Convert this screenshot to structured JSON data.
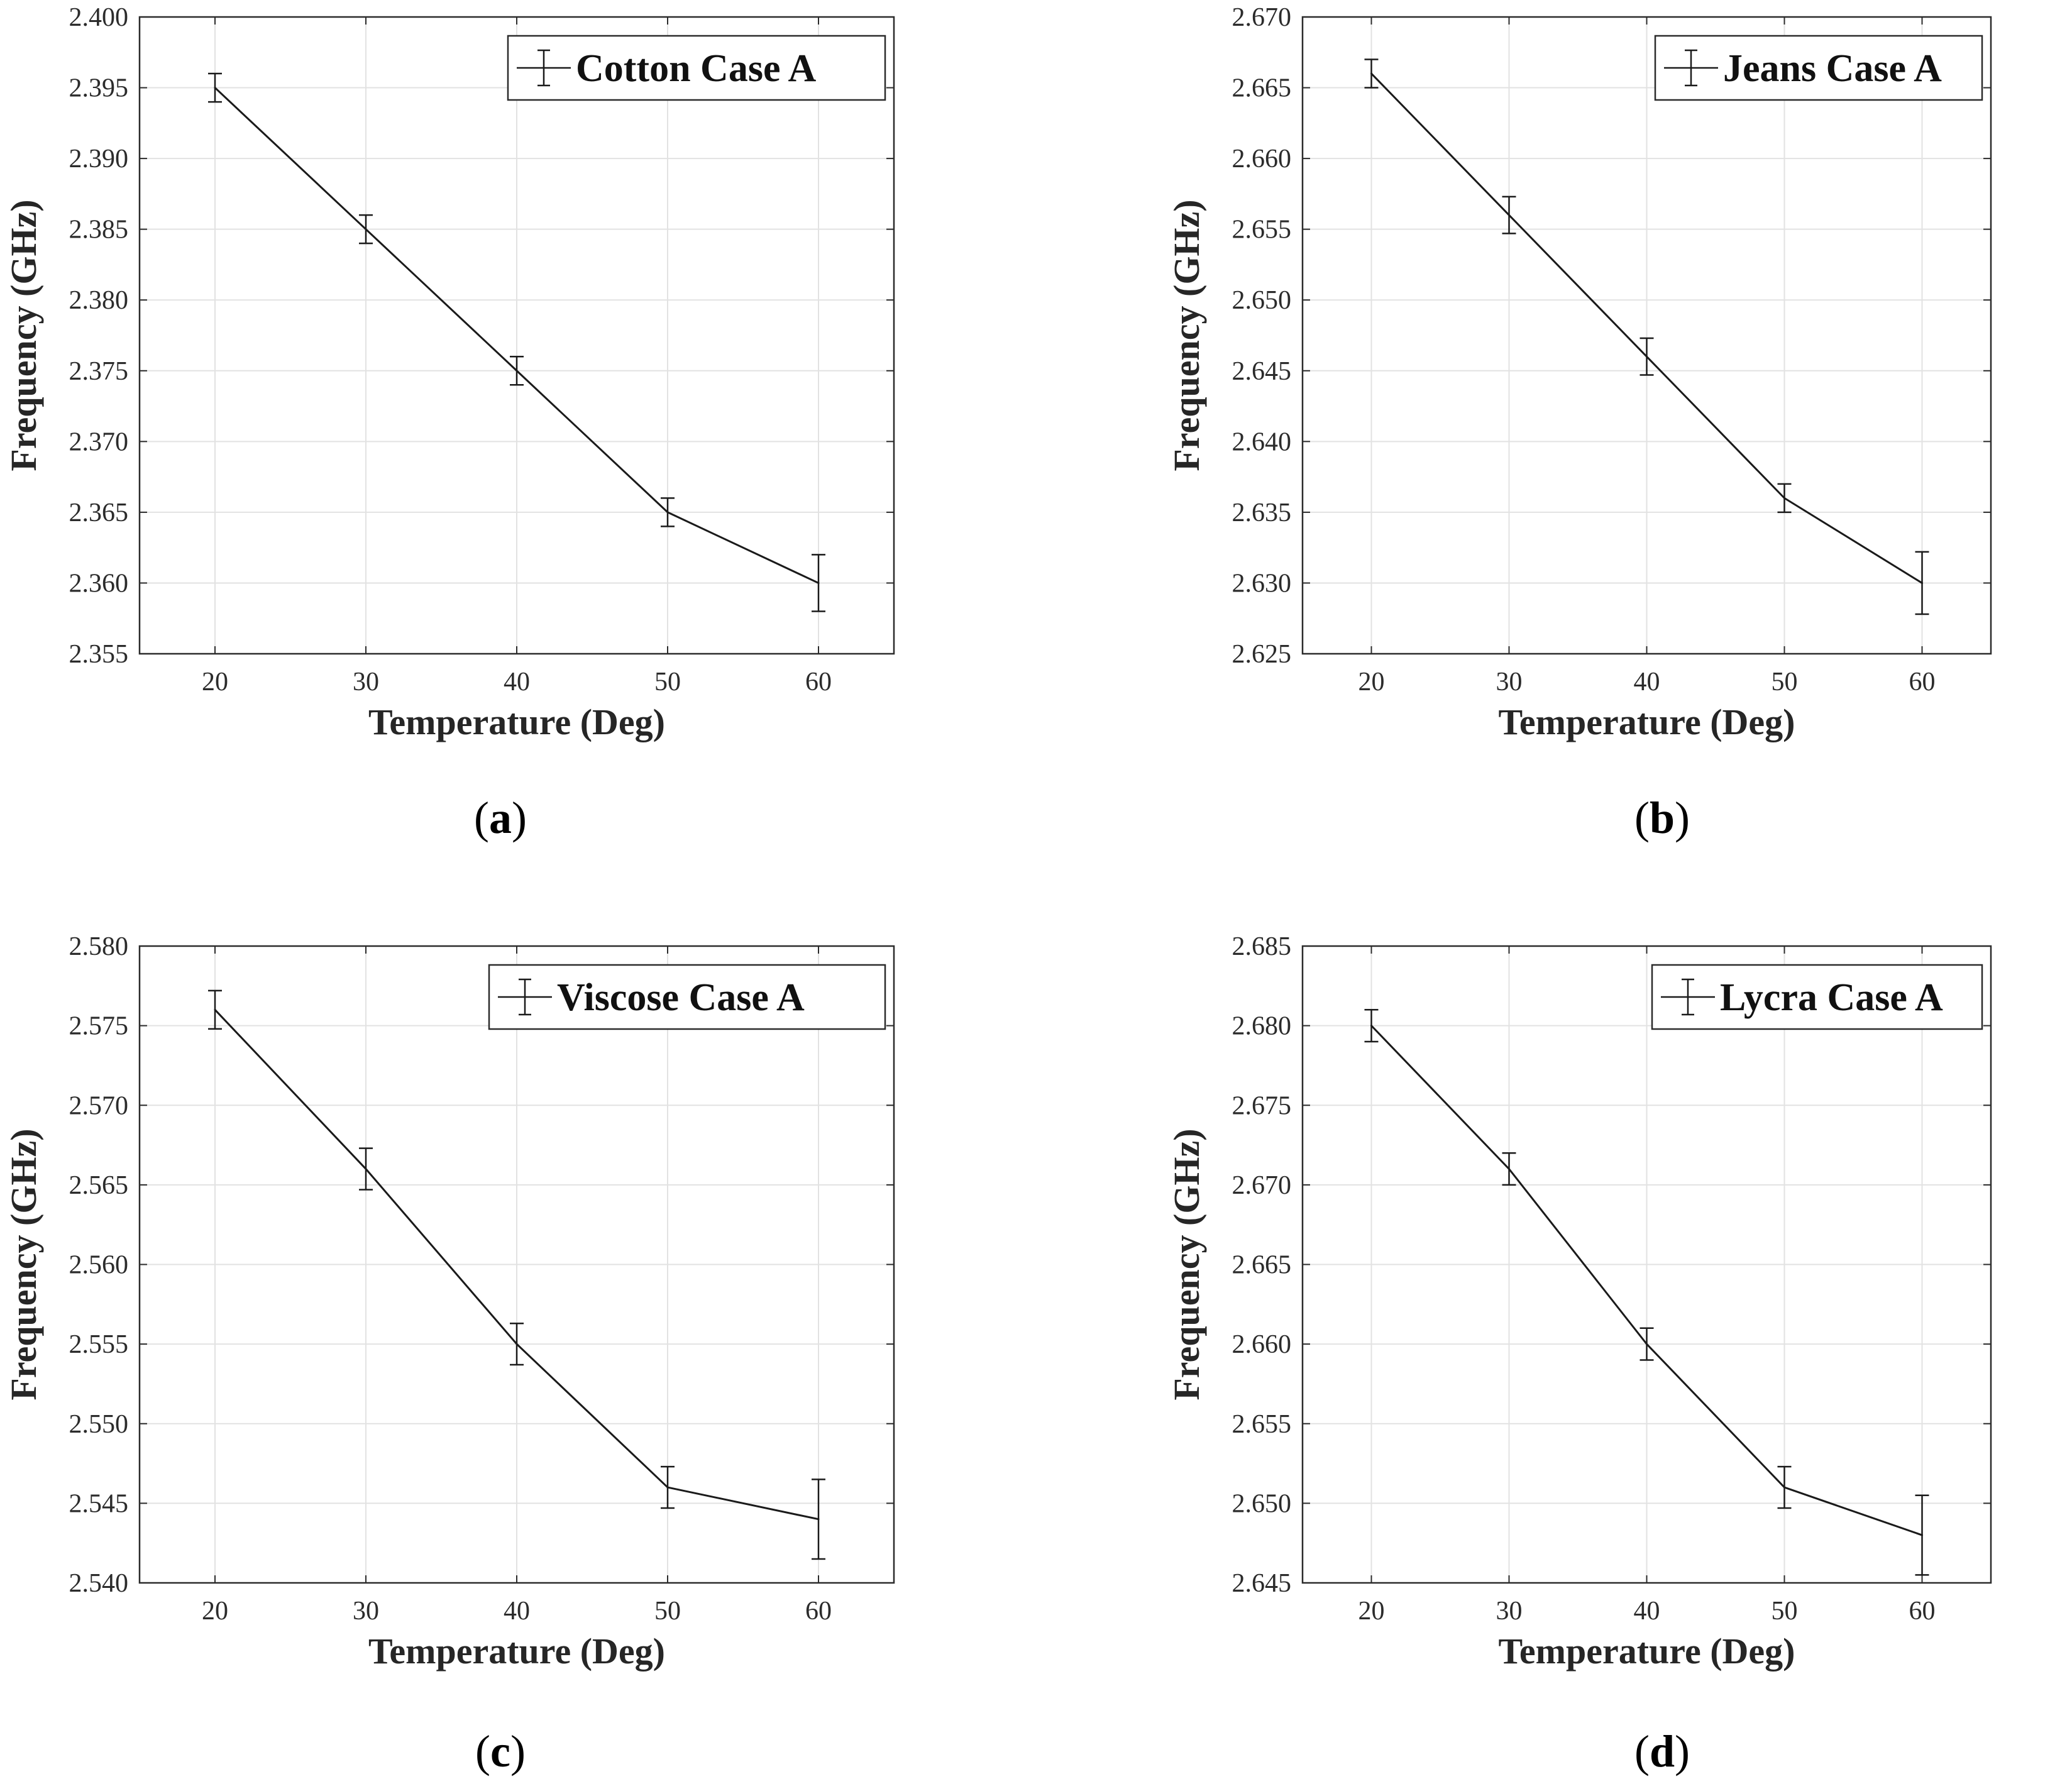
{
  "chart_data": [
    {
      "type": "line",
      "panel": "a",
      "caption": "a",
      "legend": "Cotton Case A",
      "legend_position": "top-right",
      "xlabel": "Temperature (Deg)",
      "ylabel": "Frequency (GHz)",
      "grid": true,
      "x": [
        20,
        30,
        40,
        50,
        60
      ],
      "xlim": [
        15,
        65
      ],
      "xticks": [
        "20",
        "30",
        "40",
        "50",
        "60"
      ],
      "ylim": [
        2.355,
        2.4
      ],
      "yticks": [
        "2.355",
        "2.360",
        "2.365",
        "2.370",
        "2.375",
        "2.380",
        "2.385",
        "2.390",
        "2.395",
        "2.400"
      ],
      "series": [
        {
          "name": "Cotton Case A",
          "values": [
            2.395,
            2.385,
            2.375,
            2.365,
            2.36
          ],
          "error": [
            0.001,
            0.001,
            0.001,
            0.001,
            0.002
          ]
        }
      ]
    },
    {
      "type": "line",
      "panel": "b",
      "caption": "b",
      "legend": "Jeans Case A",
      "legend_position": "top-right",
      "xlabel": "Temperature (Deg)",
      "ylabel": "Frequency (GHz)",
      "grid": true,
      "x": [
        20,
        30,
        40,
        50,
        60
      ],
      "xlim": [
        15,
        65
      ],
      "xticks": [
        "20",
        "30",
        "40",
        "50",
        "60"
      ],
      "ylim": [
        2.625,
        2.67
      ],
      "yticks": [
        "2.625",
        "2.630",
        "2.635",
        "2.640",
        "2.645",
        "2.650",
        "2.655",
        "2.660",
        "2.665",
        "2.670"
      ],
      "series": [
        {
          "name": "Jeans Case A",
          "values": [
            2.666,
            2.656,
            2.646,
            2.636,
            2.63
          ],
          "error": [
            0.001,
            0.0013,
            0.0013,
            0.001,
            0.0022
          ]
        }
      ]
    },
    {
      "type": "line",
      "panel": "c",
      "caption": "c",
      "legend": "Viscose Case A",
      "legend_position": "top-right",
      "xlabel": "Temperature (Deg)",
      "ylabel": "Frequency (GHz)",
      "grid": true,
      "x": [
        20,
        30,
        40,
        50,
        60
      ],
      "xlim": [
        15,
        65
      ],
      "xticks": [
        "20",
        "30",
        "40",
        "50",
        "60"
      ],
      "ylim": [
        2.54,
        2.58
      ],
      "yticks": [
        "2.540",
        "2.545",
        "2.550",
        "2.555",
        "2.560",
        "2.565",
        "2.570",
        "2.575",
        "2.580"
      ],
      "series": [
        {
          "name": "Viscose Case A",
          "values": [
            2.576,
            2.566,
            2.555,
            2.546,
            2.544
          ],
          "error": [
            0.0012,
            0.0013,
            0.0013,
            0.0013,
            0.0025
          ]
        }
      ]
    },
    {
      "type": "line",
      "panel": "d",
      "caption": "d",
      "legend": "Lycra Case A",
      "legend_position": "top-right",
      "xlabel": "Temperature (Deg)",
      "ylabel": "Frequency (GHz)",
      "grid": true,
      "x": [
        20,
        30,
        40,
        50,
        60
      ],
      "xlim": [
        15,
        65
      ],
      "xticks": [
        "20",
        "30",
        "40",
        "50",
        "60"
      ],
      "ylim": [
        2.645,
        2.685
      ],
      "yticks": [
        "2.645",
        "2.650",
        "2.655",
        "2.660",
        "2.665",
        "2.670",
        "2.675",
        "2.680",
        "2.685"
      ],
      "series": [
        {
          "name": "Lycra Case A",
          "values": [
            2.68,
            2.671,
            2.66,
            2.651,
            2.648
          ],
          "error": [
            0.001,
            0.001,
            0.001,
            0.0013,
            0.0025
          ]
        }
      ]
    }
  ]
}
